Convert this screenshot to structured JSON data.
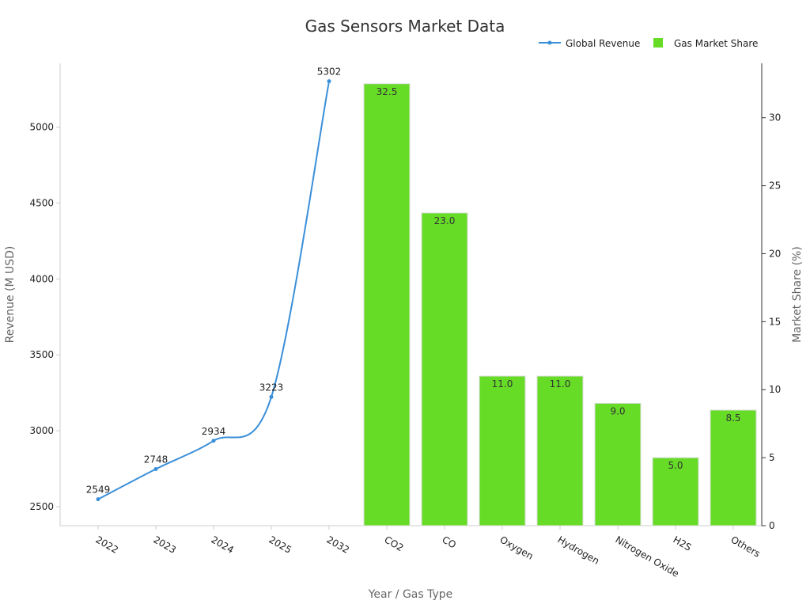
{
  "chart_data": {
    "type": "bar",
    "title": "Gas Sensors Market Data",
    "xlabel": "Year / Gas Type",
    "ylabel_left": "Revenue (M USD)",
    "ylabel_right": "Market Share (%)",
    "categories": [
      "2022",
      "2023",
      "2024",
      "2025",
      "2032",
      "CO2",
      "CO",
      "Oxygen",
      "Hydrogen",
      "Nitrogen Oxide",
      "H2S",
      "Others"
    ],
    "ylim_left": [
      2375,
      5420
    ],
    "yticks_left": [
      2500,
      3000,
      3500,
      4000,
      4500,
      5000
    ],
    "ylim_right": [
      0,
      34
    ],
    "yticks_right": [
      0,
      5,
      10,
      15,
      20,
      25,
      30
    ],
    "legend_position": "top-right",
    "grid": false,
    "series": [
      {
        "name": "Global Revenue",
        "type": "line",
        "axis": "left",
        "color": "#3a8fd9",
        "x": [
          "2022",
          "2023",
          "2024",
          "2025",
          "2032"
        ],
        "values": [
          2549,
          2748,
          2934,
          3223,
          5302
        ]
      },
      {
        "name": "Gas Market Share",
        "type": "bar",
        "axis": "right",
        "color": "#66dc27",
        "x": [
          "CO2",
          "CO",
          "Oxygen",
          "Hydrogen",
          "Nitrogen Oxide",
          "H2S",
          "Others"
        ],
        "values": [
          32.5,
          23.0,
          11.0,
          11.0,
          9.0,
          5.0,
          8.5
        ]
      }
    ]
  }
}
